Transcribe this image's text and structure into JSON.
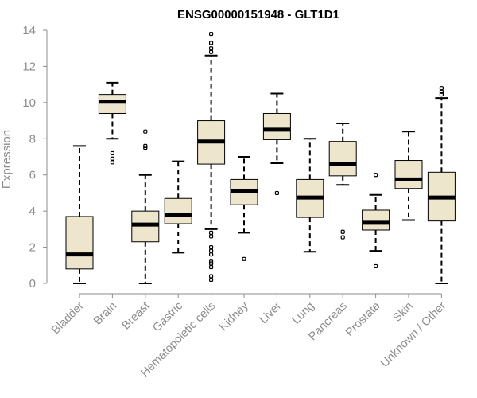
{
  "chart_data": {
    "type": "box",
    "title": "ENSG00000151948 - GLT1D1",
    "xlabel": "",
    "ylabel": "Expression",
    "ylim": [
      0,
      14
    ],
    "yticks": [
      0,
      2,
      4,
      6,
      8,
      10,
      12,
      14
    ],
    "grid": false,
    "legend": "none",
    "colors": {
      "box_fill": "#ede6cc",
      "stroke": "#000000",
      "axis": "#8c8c8c"
    },
    "categories": [
      "Bladder",
      "Brain",
      "Breast",
      "Gastric",
      "Hematopoietic cells",
      "Kidney",
      "Liver",
      "Lung",
      "Pancreas",
      "Prostate",
      "Skin",
      "Unknown / Other"
    ],
    "boxes": [
      {
        "q1": 0.8,
        "median": 1.6,
        "q3": 3.7,
        "lower_whisker": 0.0,
        "upper_whisker": 7.6,
        "outliers": []
      },
      {
        "q1": 9.4,
        "median": 10.05,
        "q3": 10.45,
        "lower_whisker": 8.0,
        "upper_whisker": 11.1,
        "outliers": [
          6.7,
          6.9,
          7.2
        ]
      },
      {
        "q1": 2.3,
        "median": 3.25,
        "q3": 4.0,
        "lower_whisker": 0.0,
        "upper_whisker": 6.0,
        "outliers": [
          7.5,
          7.6,
          8.4
        ]
      },
      {
        "q1": 3.3,
        "median": 3.8,
        "q3": 4.7,
        "lower_whisker": 1.7,
        "upper_whisker": 6.75,
        "outliers": []
      },
      {
        "q1": 6.6,
        "median": 7.85,
        "q3": 9.0,
        "lower_whisker": 3.0,
        "upper_whisker": 12.6,
        "outliers": [
          0.2,
          0.4,
          0.9,
          1.1,
          1.2,
          1.6,
          1.8,
          2.0,
          2.6,
          2.8,
          12.8,
          13.0,
          13.3,
          13.8
        ]
      },
      {
        "q1": 4.35,
        "median": 5.1,
        "q3": 5.75,
        "lower_whisker": 2.8,
        "upper_whisker": 7.0,
        "outliers": [
          1.35
        ]
      },
      {
        "q1": 7.95,
        "median": 8.5,
        "q3": 9.4,
        "lower_whisker": 6.65,
        "upper_whisker": 10.5,
        "outliers": [
          5.0
        ]
      },
      {
        "q1": 3.65,
        "median": 4.75,
        "q3": 5.75,
        "lower_whisker": 1.75,
        "upper_whisker": 8.0,
        "outliers": []
      },
      {
        "q1": 5.95,
        "median": 6.6,
        "q3": 7.85,
        "lower_whisker": 5.45,
        "upper_whisker": 8.85,
        "outliers": [
          2.55,
          2.85
        ]
      },
      {
        "q1": 2.95,
        "median": 3.35,
        "q3": 4.05,
        "lower_whisker": 1.8,
        "upper_whisker": 4.9,
        "outliers": [
          0.95,
          6.0
        ]
      },
      {
        "q1": 5.25,
        "median": 5.75,
        "q3": 6.8,
        "lower_whisker": 3.5,
        "upper_whisker": 8.4,
        "outliers": []
      },
      {
        "q1": 3.45,
        "median": 4.75,
        "q3": 6.15,
        "lower_whisker": 0.0,
        "upper_whisker": 10.25,
        "outliers": [
          10.45,
          10.6,
          10.8
        ]
      }
    ]
  }
}
